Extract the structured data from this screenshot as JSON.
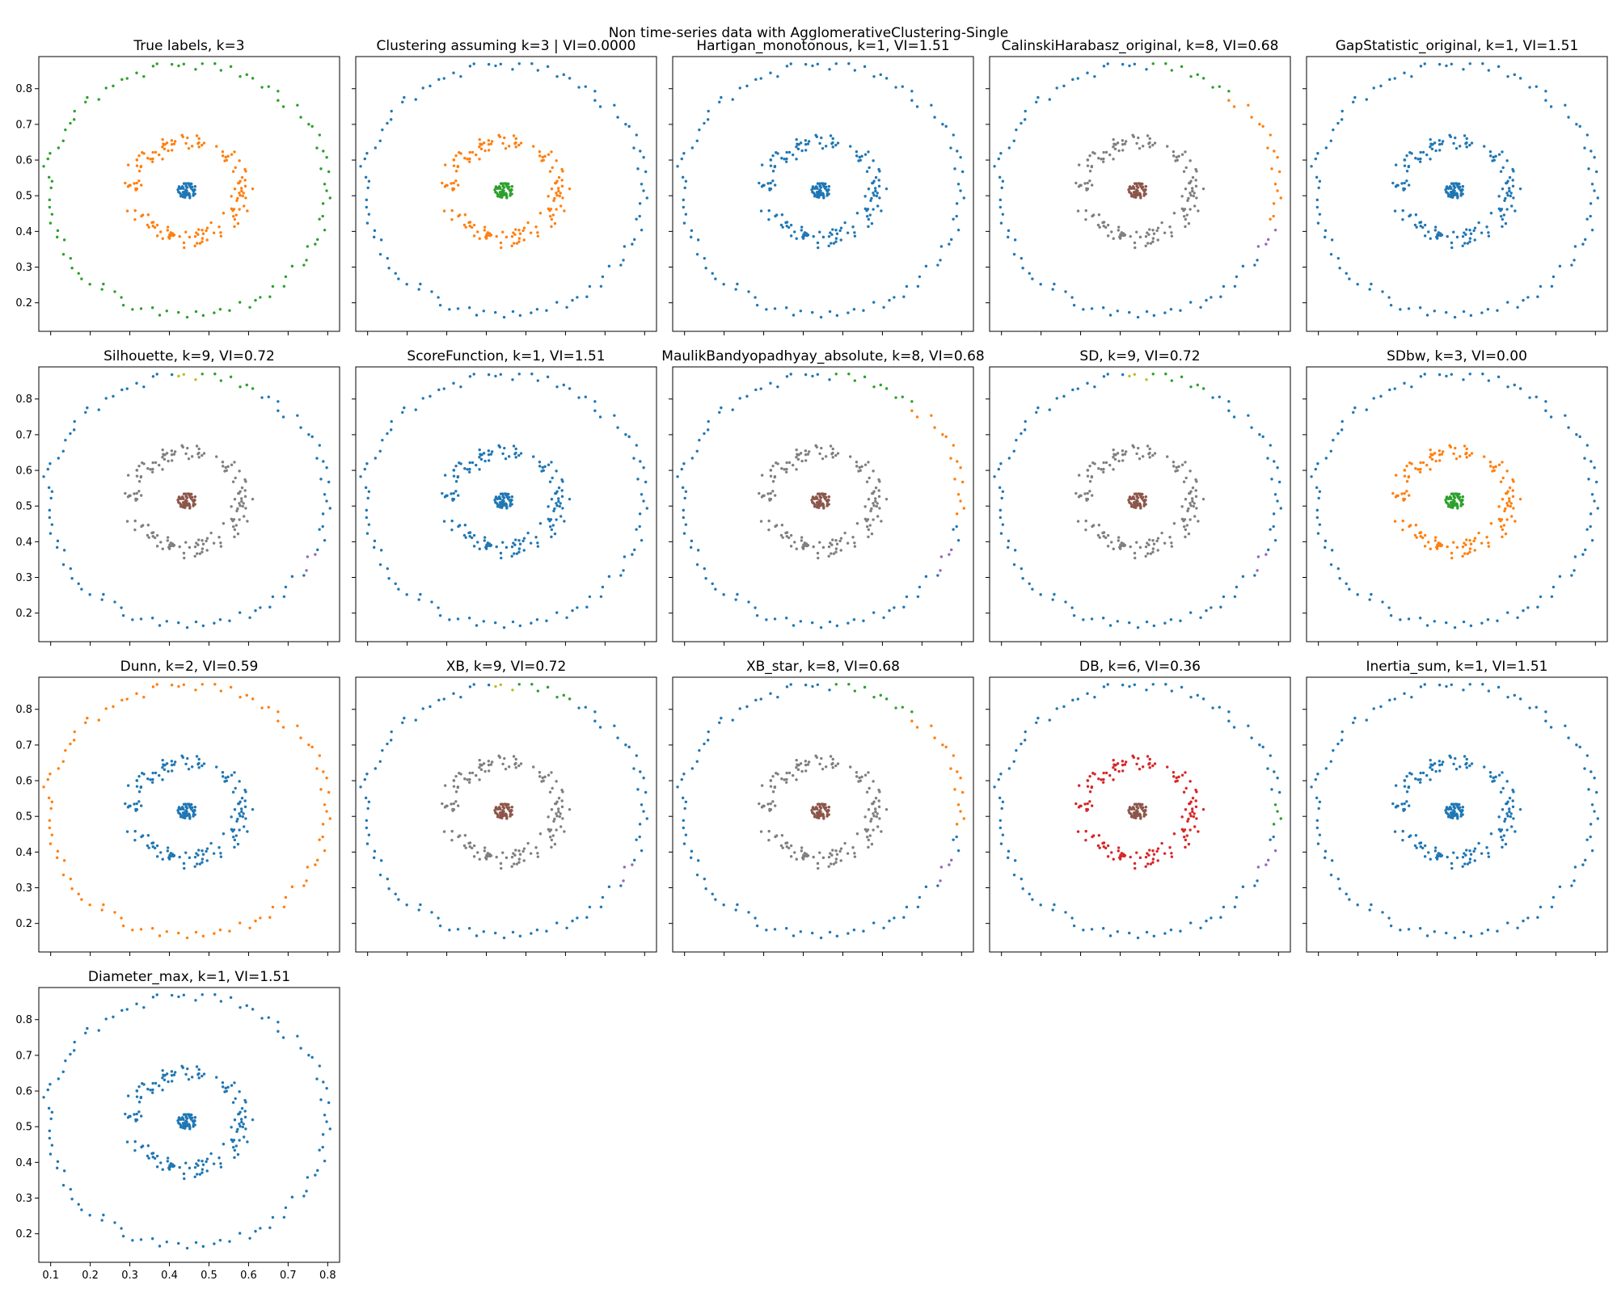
{
  "figure": {
    "title": "Non time-series data with AgglomerativeClustering-Single"
  },
  "chart_data": {
    "type": "scatter",
    "xlim": [
      0.07,
      0.83
    ],
    "ylim": [
      0.12,
      0.89
    ],
    "x_ticks": [
      0.1,
      0.2,
      0.3,
      0.4,
      0.5,
      0.6,
      0.7,
      0.8
    ],
    "x_tick_labels": [
      "0.1",
      "0.2",
      "0.3",
      "0.4",
      "0.5",
      "0.6",
      "0.7",
      "0.8"
    ],
    "y_ticks": [
      0.2,
      0.3,
      0.4,
      0.5,
      0.6,
      0.7,
      0.8
    ],
    "y_tick_labels": [
      "0.2",
      "0.3",
      "0.4",
      "0.5",
      "0.6",
      "0.7",
      "0.8"
    ],
    "grid": false,
    "dataset": {
      "center": [
        0.445,
        0.515
      ],
      "core": {
        "radius": 0.022,
        "n_points": 60
      },
      "inner_ring": {
        "radius_x": 0.14,
        "radius_y": 0.135,
        "n_points": 150
      },
      "outer_ring": {
        "radius_x": 0.355,
        "radius_y": 0.35,
        "n_points": 100
      }
    },
    "palette": [
      "#1f77b4",
      "#ff7f0e",
      "#2ca02c",
      "#d62728",
      "#9467bd",
      "#8c564b",
      "#e377c2",
      "#7f7f7f",
      "#bcbd22",
      "#17becf"
    ],
    "panels": [
      {
        "title": "True labels, k=3",
        "core": 0,
        "inner": 1,
        "outer": [
          [
            360,
            2
          ]
        ]
      },
      {
        "title": "Clustering assuming k=3 | VI=0.0000",
        "core": 2,
        "inner": 1,
        "outer": [
          [
            360,
            0
          ]
        ]
      },
      {
        "title": "Hartigan_monotonous, k=1, VI=1.51",
        "core": 0,
        "inner": 0,
        "outer": [
          [
            360,
            0
          ]
        ]
      },
      {
        "title": "CalinskiHarabasz_original, k=8, VI=0.68",
        "core": 5,
        "inner": 7,
        "outer": [
          [
            50,
            1
          ],
          [
            85,
            2
          ],
          [
            92,
            0
          ],
          [
            93,
            4
          ],
          [
            2,
            6
          ],
          [
            5,
            0
          ],
          [
            10,
            3
          ],
          [
            330,
            0
          ],
          [
            345,
            4
          ],
          [
            360,
            1
          ]
        ]
      },
      {
        "title": "GapStatistic_original, k=1, VI=1.51",
        "core": 0,
        "inner": 0,
        "outer": [
          [
            360,
            0
          ]
        ]
      },
      {
        "title": "Silhouette, k=9, VI=0.72",
        "core": 5,
        "inner": 7,
        "outer": [
          [
            60,
            0
          ],
          [
            85,
            2
          ],
          [
            95,
            8
          ],
          [
            13,
            3
          ],
          [
            6,
            6
          ],
          [
            22,
            1
          ],
          [
            325,
            0
          ],
          [
            335,
            4
          ],
          [
            345,
            0
          ],
          [
            360,
            0
          ]
        ]
      },
      {
        "title": "ScoreFunction, k=1, VI=1.51",
        "core": 0,
        "inner": 0,
        "outer": [
          [
            360,
            0
          ]
        ]
      },
      {
        "title": "MaulikBandyopadhyay_absolute, k=8, VI=0.68",
        "core": 5,
        "inner": 7,
        "outer": [
          [
            50,
            1
          ],
          [
            85,
            2
          ],
          [
            92,
            0
          ],
          [
            2,
            6
          ],
          [
            10,
            3
          ],
          [
            12,
            1
          ],
          [
            325,
            0
          ],
          [
            340,
            4
          ],
          [
            350,
            0
          ],
          [
            360,
            1
          ]
        ]
      },
      {
        "title": "SD, k=9, VI=0.72",
        "core": 5,
        "inner": 7,
        "outer": [
          [
            60,
            0
          ],
          [
            85,
            2
          ],
          [
            95,
            8
          ],
          [
            13,
            3
          ],
          [
            6,
            6
          ],
          [
            22,
            1
          ],
          [
            325,
            0
          ],
          [
            335,
            4
          ],
          [
            345,
            0
          ],
          [
            360,
            0
          ]
        ]
      },
      {
        "title": "SDbw, k=3, VI=0.00",
        "core": 2,
        "inner": 1,
        "outer": [
          [
            360,
            0
          ]
        ]
      },
      {
        "title": "Dunn, k=2, VI=0.59",
        "core": 0,
        "inner": 0,
        "outer": [
          [
            360,
            1
          ]
        ]
      },
      {
        "title": "XB, k=9, VI=0.72",
        "core": 5,
        "inner": 7,
        "outer": [
          [
            60,
            0
          ],
          [
            85,
            2
          ],
          [
            95,
            8
          ],
          [
            13,
            3
          ],
          [
            6,
            6
          ],
          [
            22,
            1
          ],
          [
            325,
            0
          ],
          [
            335,
            4
          ],
          [
            345,
            0
          ],
          [
            360,
            0
          ]
        ]
      },
      {
        "title": "XB_star, k=8, VI=0.68",
        "core": 5,
        "inner": 7,
        "outer": [
          [
            50,
            1
          ],
          [
            85,
            2
          ],
          [
            92,
            0
          ],
          [
            2,
            6
          ],
          [
            10,
            3
          ],
          [
            12,
            1
          ],
          [
            325,
            0
          ],
          [
            340,
            4
          ],
          [
            350,
            0
          ],
          [
            360,
            1
          ]
        ]
      },
      {
        "title": "DB, k=6, VI=0.36",
        "core": 5,
        "inner": 3,
        "outer": [
          [
            8,
            0
          ],
          [
            360,
            0
          ]
        ],
        "outer_extra": [
          [
            -8,
            8,
            2
          ],
          [
            330,
            345,
            4
          ]
        ]
      },
      {
        "title": "Inertia_sum, k=1, VI=1.51",
        "core": 0,
        "inner": 0,
        "outer": [
          [
            360,
            0
          ]
        ]
      },
      {
        "title": "Diameter_max, k=1, VI=1.51",
        "core": 0,
        "inner": 0,
        "outer": [
          [
            360,
            0
          ]
        ],
        "x_labels": true
      }
    ]
  }
}
